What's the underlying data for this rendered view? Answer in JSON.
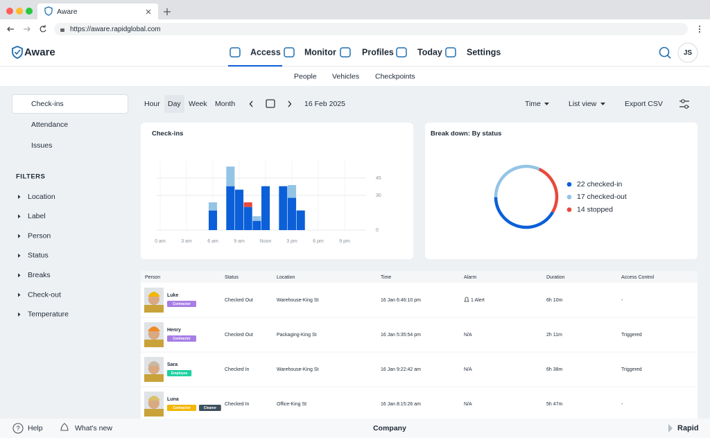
{
  "browser": {
    "tab_title": "Aware",
    "url": "https://aware.rapidglobal.com"
  },
  "nav": {
    "brand": "Aware",
    "items": [
      "Access",
      "Monitor",
      "Profiles",
      "Today",
      "Settings"
    ],
    "active": 0,
    "avatar": "JS"
  },
  "subnav": {
    "items": [
      "People",
      "Vehicles",
      "Checkpoints"
    ],
    "active": 0
  },
  "sidebar": {
    "views": [
      "Check-ins",
      "Attendance",
      "Issues"
    ],
    "active": 0,
    "filters_title": "FILTERS",
    "filters": [
      "Location",
      "Label",
      "Person",
      "Status",
      "Breaks",
      "Check-out",
      "Temperature"
    ]
  },
  "toolbar": {
    "ranges": [
      "Hour",
      "Day",
      "Week",
      "Month"
    ],
    "active": 1,
    "date": "16 Feb 2025",
    "sort": "Time",
    "view": "List view",
    "export": "Export CSV"
  },
  "chart_data": [
    {
      "type": "bar",
      "stacked": true,
      "title": "Check-ins",
      "categories": [
        "0 am",
        null,
        null,
        "3 am",
        null,
        null,
        "6 am",
        null,
        null,
        "9 am",
        null,
        null,
        "Noon",
        null,
        null,
        "3 pm",
        null,
        null,
        "6 pm",
        null,
        null,
        "9 pm",
        null,
        null
      ],
      "series": [
        {
          "color": "#0b5fd8",
          "values": [
            0,
            0,
            0,
            0,
            0,
            0,
            17,
            0,
            38,
            35,
            20,
            8,
            38,
            0,
            38,
            28,
            17,
            0,
            0,
            0,
            0,
            0,
            0,
            0
          ]
        },
        {
          "color": "#93c4e6",
          "values": [
            0,
            0,
            0,
            0,
            0,
            0,
            7,
            0,
            17,
            0,
            0,
            4,
            0,
            0,
            0,
            11,
            0,
            0,
            0,
            0,
            0,
            0,
            0,
            0
          ]
        },
        {
          "color": "#e8493c",
          "values": [
            0,
            0,
            0,
            0,
            0,
            0,
            0,
            0,
            0,
            0,
            4,
            0,
            0,
            0,
            0,
            0,
            0,
            0,
            0,
            0,
            0,
            0,
            0,
            0
          ]
        }
      ],
      "ylim": [
        0,
        60
      ],
      "yticks": [
        0,
        30,
        45
      ],
      "y_axis_side": "right",
      "grid": true
    },
    {
      "type": "pie",
      "donut": true,
      "title": "Break down: By status",
      "categories": [
        "22 checked-in",
        "17 checked-out",
        "14 stopped"
      ],
      "values": [
        22,
        17,
        14
      ],
      "colors": [
        "#0b5fd8",
        "#93c4e6",
        "#e8493c"
      ],
      "legend": "right"
    }
  ],
  "table": {
    "columns": [
      "Person",
      "Status",
      "Location",
      "Time",
      "Alarm",
      "Duration",
      "Access Control"
    ],
    "rows": [
      {
        "name": "Luke",
        "tags": [
          {
            "text": "Contractor",
            "color": "#a77de6"
          }
        ],
        "status": "Checked Out",
        "status_color": "#93c4e6",
        "location": "Warehouse-King St",
        "time": "16 Jan 6:46:10 pm",
        "alarm": "1 Alert",
        "alarm_icon": true,
        "duration": "6h 10m",
        "access": "-",
        "avatar_color": "#f2b705"
      },
      {
        "name": "Henry",
        "tags": [
          {
            "text": "Contractor",
            "color": "#a77de6"
          }
        ],
        "status": "Checked Out",
        "status_color": "#93c4e6",
        "location": "Packaging-King St",
        "time": "16 Jan 5:35:54 pm",
        "alarm": "N/A",
        "alarm_icon": false,
        "duration": "2h 11m",
        "access": "Triggered",
        "avatar_color": "#f08a24"
      },
      {
        "name": "Sara",
        "tags": [
          {
            "text": "Employee",
            "color": "#1ed1a0"
          }
        ],
        "status": "Checked In",
        "status_color": "#0b5fd8",
        "location": "Warehouse-King St",
        "time": "16 Jan 9:22:42 am",
        "alarm": "N/A",
        "alarm_icon": false,
        "duration": "6h 38m",
        "access": "Triggered",
        "avatar_color": "#c9b9a4"
      },
      {
        "name": "Luna",
        "tags": [
          {
            "text": "Contractor",
            "color": "#f2b705"
          },
          {
            "text": "Cleaner",
            "color": "#3d4f5c"
          }
        ],
        "status": "Checked In",
        "status_color": "#0b5fd8",
        "location": "Office-King St",
        "time": "16 Jan 8:15:26 am",
        "alarm": "N/A",
        "alarm_icon": false,
        "duration": "5h 47m",
        "access": "-",
        "avatar_color": "#d9c06a"
      }
    ]
  },
  "footer": {
    "help": "Help",
    "whats_new": "What's new",
    "company": "Company",
    "brand": "Rapid"
  }
}
